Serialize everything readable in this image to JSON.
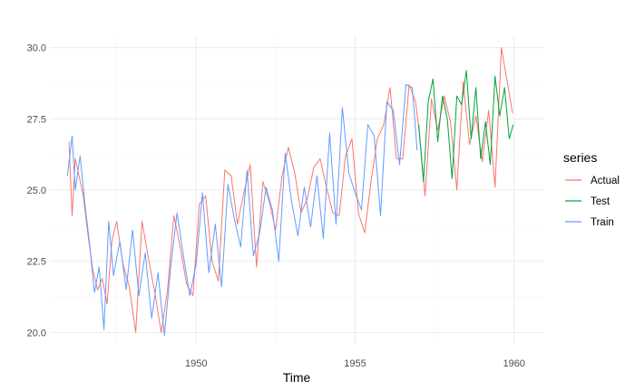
{
  "chart_data": {
    "type": "line",
    "xlabel": "Time",
    "ylabel": "",
    "xlim": [
      1945.4,
      1960.95
    ],
    "ylim": [
      19.6,
      30.4
    ],
    "x_ticks": [
      1950,
      1955,
      1960
    ],
    "x_tick_labels": [
      "1950",
      "1955",
      "1960"
    ],
    "y_ticks": [
      20,
      22.5,
      25,
      27.5,
      30
    ],
    "y_tick_labels": [
      "20.0",
      "22.5",
      "25.0",
      "27.5",
      "30.0"
    ],
    "grid": true,
    "legend": {
      "title": "series",
      "position": "right"
    },
    "series": [
      {
        "name": "Actual",
        "color": "#f8766d",
        "x": [
          1946.0,
          1946.1,
          1946.2,
          1946.3,
          1946.45,
          1946.6,
          1946.75,
          1946.9,
          1947.05,
          1947.2,
          1947.35,
          1947.5,
          1947.7,
          1947.9,
          1948.1,
          1948.3,
          1948.5,
          1948.7,
          1948.9,
          1949.1,
          1949.3,
          1949.5,
          1949.7,
          1949.9,
          1950.1,
          1950.3,
          1950.5,
          1950.7,
          1950.9,
          1951.1,
          1951.3,
          1951.5,
          1951.7,
          1951.9,
          1952.1,
          1952.3,
          1952.5,
          1952.7,
          1952.9,
          1953.1,
          1953.3,
          1953.5,
          1953.7,
          1953.9,
          1954.1,
          1954.3,
          1954.5,
          1954.7,
          1954.9,
          1955.1,
          1955.3,
          1955.5,
          1955.7,
          1955.9,
          1956.1,
          1956.3,
          1956.5,
          1956.7,
          1956.9,
          1957.0,
          1957.2,
          1957.4,
          1957.6,
          1957.8,
          1958.0,
          1958.2,
          1958.4,
          1958.6,
          1958.8,
          1959.0,
          1959.2,
          1959.4,
          1959.6,
          1959.8,
          1959.95
        ],
        "y": [
          26.7,
          24.1,
          26.1,
          25.6,
          24.8,
          23.4,
          22.2,
          21.5,
          21.9,
          21.0,
          23.2,
          23.9,
          22.4,
          21.6,
          20.0,
          23.9,
          22.6,
          21.4,
          20.0,
          21.5,
          24.1,
          23.0,
          21.7,
          21.3,
          24.5,
          24.8,
          22.5,
          21.8,
          25.7,
          25.5,
          23.8,
          24.9,
          25.9,
          22.3,
          25.3,
          24.6,
          23.6,
          25.5,
          26.5,
          25.6,
          24.2,
          24.7,
          25.8,
          26.1,
          25.1,
          24.2,
          24.1,
          26.2,
          26.8,
          24.2,
          23.5,
          25.3,
          26.8,
          27.3,
          28.6,
          26.1,
          26.1,
          28.7,
          28.1,
          27.2,
          24.8,
          28.2,
          27.1,
          28.3,
          27.4,
          25.0,
          28.8,
          26.6,
          27.6,
          26.0,
          27.8,
          25.1,
          30.0,
          28.7,
          27.7
        ]
      },
      {
        "name": "Test",
        "color": "#00a33b",
        "x": [
          1957.0,
          1957.15,
          1957.3,
          1957.45,
          1957.6,
          1957.75,
          1957.9,
          1958.05,
          1958.2,
          1958.35,
          1958.5,
          1958.65,
          1958.8,
          1958.95,
          1959.1,
          1959.25,
          1959.4,
          1959.55,
          1959.7,
          1959.85,
          1959.97
        ],
        "y": [
          27.3,
          25.3,
          28.1,
          28.9,
          26.7,
          28.3,
          27.5,
          25.4,
          28.3,
          28.0,
          29.2,
          26.8,
          28.6,
          26.1,
          27.4,
          25.9,
          29.0,
          27.6,
          28.6,
          26.8,
          27.3
        ]
      },
      {
        "name": "Train",
        "color": "#619cff",
        "x": [
          1945.95,
          1946.1,
          1946.2,
          1946.35,
          1946.5,
          1946.65,
          1946.8,
          1946.95,
          1947.1,
          1947.25,
          1947.4,
          1947.6,
          1947.8,
          1948.0,
          1948.2,
          1948.4,
          1948.6,
          1948.8,
          1949.0,
          1949.2,
          1949.4,
          1949.6,
          1949.8,
          1950.0,
          1950.2,
          1950.4,
          1950.6,
          1950.8,
          1951.0,
          1951.2,
          1951.4,
          1951.6,
          1951.8,
          1952.0,
          1952.2,
          1952.4,
          1952.6,
          1952.8,
          1953.0,
          1953.2,
          1953.4,
          1953.6,
          1953.8,
          1954.0,
          1954.2,
          1954.4,
          1954.6,
          1954.8,
          1955.0,
          1955.2,
          1955.4,
          1955.6,
          1955.8,
          1956.0,
          1956.2,
          1956.4,
          1956.6,
          1956.8,
          1956.95
        ],
        "y": [
          25.5,
          26.9,
          25.0,
          26.2,
          24.5,
          23.1,
          21.4,
          22.3,
          20.1,
          23.9,
          22.0,
          23.2,
          21.5,
          23.6,
          21.3,
          22.8,
          20.5,
          22.1,
          19.9,
          22.3,
          24.2,
          22.7,
          21.3,
          22.4,
          24.9,
          22.1,
          23.8,
          21.6,
          25.2,
          24.0,
          23.0,
          25.7,
          22.7,
          23.5,
          25.1,
          24.3,
          22.5,
          26.3,
          24.6,
          23.4,
          25.1,
          23.7,
          25.5,
          23.3,
          27.0,
          23.8,
          27.9,
          25.6,
          24.9,
          24.3,
          27.3,
          26.9,
          24.1,
          28.1,
          27.8,
          25.9,
          28.7,
          28.6,
          26.4
        ]
      }
    ]
  }
}
